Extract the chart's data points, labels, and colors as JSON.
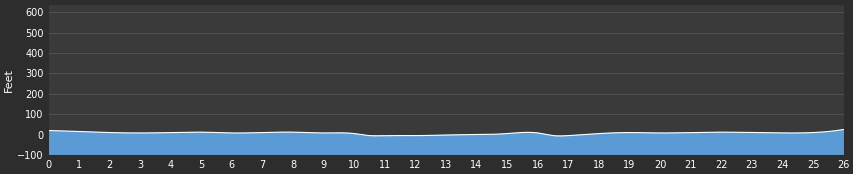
{
  "background_color": "#2d2d2d",
  "plot_bg_color": "#3a3a3a",
  "fill_color": "#5b9bd5",
  "line_color": "#ffffff",
  "xlabel_ticks": [
    0,
    1,
    2,
    3,
    4,
    5,
    6,
    7,
    8,
    9,
    10,
    11,
    12,
    13,
    14,
    15,
    16,
    17,
    18,
    19,
    20,
    21,
    22,
    23,
    24,
    25,
    26
  ],
  "yticks": [
    -100,
    0,
    100,
    200,
    300,
    400,
    500,
    600
  ],
  "ylim": [
    -100,
    640
  ],
  "xlim": [
    0,
    26
  ],
  "ylabel": "Feet",
  "ylabel_color": "#ffffff",
  "tick_color": "#ffffff",
  "grid_color": "#555555",
  "elevation_x": [
    0,
    1,
    2,
    3,
    4,
    5,
    6,
    7,
    8,
    9,
    10,
    10.5,
    11,
    12,
    13,
    14,
    15,
    16,
    16.5,
    17,
    18,
    19,
    20,
    21,
    22,
    23,
    24,
    25,
    26
  ],
  "elevation_y": [
    20,
    15,
    10,
    8,
    10,
    12,
    8,
    10,
    12,
    8,
    5,
    -5,
    -5,
    -5,
    -2,
    0,
    5,
    8,
    -5,
    -5,
    5,
    10,
    8,
    10,
    12,
    10,
    8,
    10,
    25
  ],
  "font_size": 8,
  "tick_font_size": 7
}
